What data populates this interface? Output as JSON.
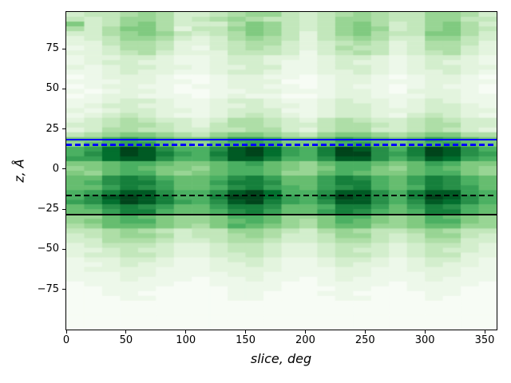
{
  "chart_data": {
    "type": "heatmap",
    "title": "",
    "xlabel": "slice, deg",
    "ylabel": "z, Å",
    "xlim": [
      0,
      360
    ],
    "ylim": [
      -100,
      98
    ],
    "grid": false,
    "legend": false,
    "x_ticks": [
      0,
      50,
      100,
      150,
      200,
      250,
      300,
      350
    ],
    "x_tick_labels": [
      "0",
      "50",
      "100",
      "150",
      "200",
      "250",
      "300",
      "350"
    ],
    "y_ticks": [
      75,
      50,
      25,
      0,
      -25,
      -50,
      -75
    ],
    "y_tick_labels": [
      "75",
      "50",
      "25",
      "0",
      "−25",
      "−50",
      "−75"
    ],
    "colormap": {
      "name": "Greens",
      "stops": [
        "#f7fcf5",
        "#e5f5e0",
        "#c7e9c0",
        "#a1d99b",
        "#74c476",
        "#41ab5d",
        "#238b45",
        "#006d2c",
        "#00441b"
      ]
    },
    "heatmap": {
      "cols": 24,
      "rows": 66,
      "x_bin_deg": 15,
      "z_bin_angstrom": 3,
      "origin": "top-left cell is z≈98 Å at slice 0°; rows go downward in z, columns rightward in slice angle",
      "scale": "one hex digit per cell, 0 = min density (white) … f = max density (dark green); values estimated from pixels",
      "values": [
        "344565334566434565446653",
        "434665345654434665446644",
        "734675333576434675346753",
        "535775244676434676346754",
        "335676434576424675447753",
        "234665323565424565336643",
        "224554223455323454235542",
        "123554213454323544235532",
        "223453222444313454234532",
        "122332112332212332123321",
        "123322112332112322123221",
        "212332212233112332123322",
        "112322112332112232122321",
        "012221001221101221012210",
        "111221101222001221112211",
        "012211011221101211012110",
        "101221001122111221022210",
        "012211101211001221112211",
        "112332112332112322123211",
        "123322112232212332123321",
        "212332212333112332223322",
        "123432112343212332134321",
        "234543323554324543345433",
        "334554324554334554345533",
        "235544334455324553345432",
        "456776546776546776567755",
        "779a98778aa9778a9878a987",
        "689aa87689a97789a8789a87",
        "9adfeb99befda9cfeb9cfeb9",
        "9bdfeca9cefda9cffbacfeba",
        "aadeeb99beec99beeb9beda9",
        "7789987789a876899878a977",
        "678987768998767997689876",
        "768997678998668987789976",
        "88bcb9889bca88acb98acb98",
        "89bcca88accb88acc98acb98",
        "88acba889bca98abc989cba8",
        "9aceeb99befd99beeb9ceea9",
        "9befec99cffda9cfeb9cfeb9",
        "abdfeca9befca9beeb9bedb9",
        "89bcba88accb889cca8acb98",
        "88acc9889bca88acb989cc98",
        "668987667998667997679876",
        "678997667898657987679976",
        "568887657987657886678866",
        "445654344665435654456544",
        "345665344565334664346643",
        "335554334554334554345533",
        "234443223443223443234432",
        "223433223443223433234332",
        "233443223343223443234422",
        "122332112332112332123321",
        "112322112232112322123221",
        "122221112222111221122211",
        "111221111221111221112211",
        "111211101121101211112111",
        "011111001111001111011110",
        "001110000111000110011100",
        "001100000110001100001100",
        "000110000110000110001000",
        "000000000000000000000000",
        "000000000000000000000000",
        "000000000000000000000000",
        "000000000000000000000000",
        "000000000000000000000000",
        "000000000000000000000000"
      ]
    },
    "hlines": [
      {
        "name": "blue-solid-line",
        "z": 18.2,
        "color": "#0000ff",
        "style": "solid"
      },
      {
        "name": "blue-dashed-line",
        "z": 15.3,
        "color": "#0000ff",
        "style": "dashed"
      },
      {
        "name": "black-dashed-line",
        "z": -16.6,
        "color": "#000000",
        "style": "dashed"
      },
      {
        "name": "black-solid-line",
        "z": -28.3,
        "color": "#000000",
        "style": "solid"
      }
    ]
  }
}
